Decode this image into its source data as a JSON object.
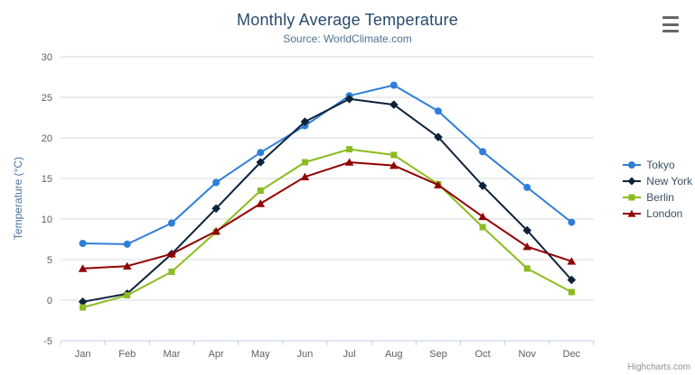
{
  "chart": {
    "title": "Monthly Average Temperature",
    "subtitle": "Source: WorldClimate.com",
    "y_axis_title": "Temperature (°C)",
    "credit": "Highcharts.com",
    "context_menu_icon": "hamburger-menu-icon"
  },
  "colors": {
    "title": "#274b6d",
    "subtitle": "#50718f",
    "axis_title": "#4d759e",
    "tick_label": "#606060",
    "axis_line": "#c0d0e0",
    "gridline": "#d8d8d8",
    "credit": "#909090"
  },
  "chart_data": {
    "type": "line",
    "title": "Monthly Average Temperature",
    "subtitle": "Source: WorldClimate.com",
    "xlabel": "",
    "ylabel": "Temperature (°C)",
    "categories": [
      "Jan",
      "Feb",
      "Mar",
      "Apr",
      "May",
      "Jun",
      "Jul",
      "Aug",
      "Sep",
      "Oct",
      "Nov",
      "Dec"
    ],
    "ylim": [
      -5,
      30
    ],
    "y_ticks": [
      -5,
      0,
      5,
      10,
      15,
      20,
      25,
      30
    ],
    "grid": true,
    "legend_position": "right",
    "series": [
      {
        "name": "Tokyo",
        "color": "#2f7ed8",
        "marker": "circle",
        "values": [
          7.0,
          6.9,
          9.5,
          14.5,
          18.2,
          21.5,
          25.2,
          26.5,
          23.3,
          18.3,
          13.9,
          9.6
        ]
      },
      {
        "name": "New York",
        "color": "#0d233a",
        "marker": "diamond",
        "values": [
          -0.2,
          0.8,
          5.7,
          11.3,
          17.0,
          22.0,
          24.8,
          24.1,
          20.1,
          14.1,
          8.6,
          2.5
        ]
      },
      {
        "name": "Berlin",
        "color": "#8bbc21",
        "marker": "square",
        "values": [
          -0.9,
          0.6,
          3.5,
          8.4,
          13.5,
          17.0,
          18.6,
          17.9,
          14.3,
          9.0,
          3.9,
          1.0
        ]
      },
      {
        "name": "London",
        "color": "#910000",
        "marker": "triangle",
        "values": [
          3.9,
          4.2,
          5.7,
          8.5,
          11.9,
          15.2,
          17.0,
          16.6,
          14.2,
          10.3,
          6.6,
          4.8
        ]
      }
    ]
  }
}
